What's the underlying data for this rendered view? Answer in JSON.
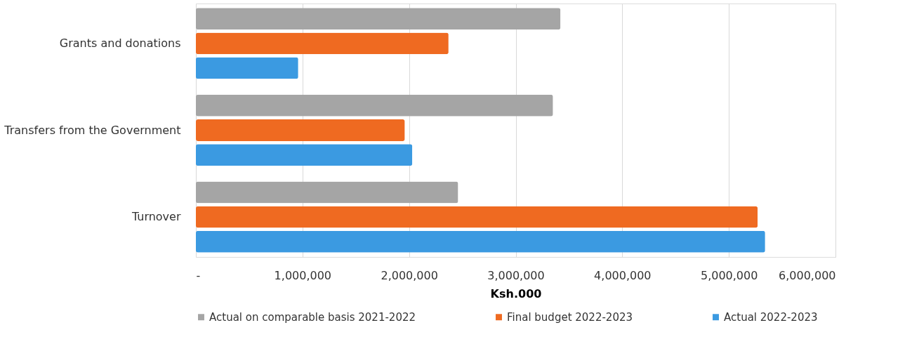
{
  "chart_data": {
    "type": "bar",
    "orientation": "horizontal",
    "xlabel": "Ksh.000",
    "categories": [
      "Grants and donations",
      "Transfers from the Government",
      "Turnover"
    ],
    "series": [
      {
        "name": "Actual on comparable basis 2021-2022",
        "color": "#a5a5a5",
        "values": [
          3420000,
          3350000,
          2460000
        ]
      },
      {
        "name": "Final budget 2022-2023",
        "color": "#ef6a21",
        "values": [
          2370000,
          1960000,
          5270000
        ]
      },
      {
        "name": "Actual 2022-2023",
        "color": "#3b9ae1",
        "values": [
          960000,
          2030000,
          5340000
        ]
      }
    ],
    "xlim": [
      0,
      6000000
    ],
    "xticks": [
      {
        "value": 0,
        "label": "-"
      },
      {
        "value": 1000000,
        "label": "1,000,000"
      },
      {
        "value": 2000000,
        "label": "2,000,000"
      },
      {
        "value": 3000000,
        "label": "3,000,000"
      },
      {
        "value": 4000000,
        "label": "4,000,000"
      },
      {
        "value": 5000000,
        "label": "5,000,000"
      },
      {
        "value": 6000000,
        "label": "6,000,000"
      }
    ],
    "grid": "x",
    "legend": "bottom"
  }
}
